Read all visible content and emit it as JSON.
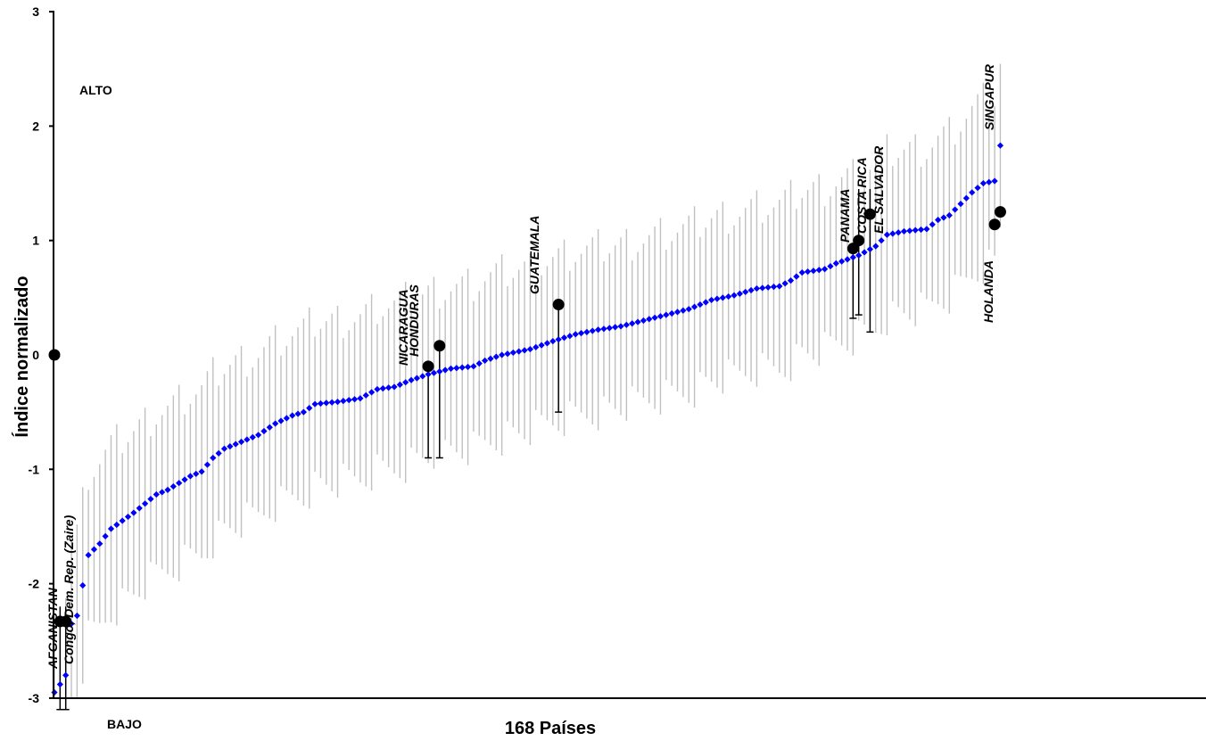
{
  "chart_data": {
    "type": "scatter",
    "n_countries": 168,
    "xlabel": "168 Países",
    "ylabel": "Índice normalizado",
    "ylim": [
      -3,
      3
    ],
    "yticks": [
      "-3",
      "-2",
      "-1",
      "0",
      "1",
      "2",
      "3"
    ],
    "region_labels": {
      "high": "ALTO",
      "low": "BAJO"
    },
    "series_color": "#0000ff",
    "interval_color": "#c0c0c0",
    "highlight_color": "#000000",
    "series": {
      "anchors": [
        [
          0,
          -2.95
        ],
        [
          1,
          -2.88
        ],
        [
          2,
          -2.8
        ],
        [
          3,
          -2.35
        ],
        [
          4,
          -2.28
        ],
        [
          6,
          -1.75
        ],
        [
          8,
          -1.65
        ],
        [
          10,
          -1.52
        ],
        [
          12,
          -1.45
        ],
        [
          14,
          -1.38
        ],
        [
          16,
          -1.3
        ],
        [
          18,
          -1.22
        ],
        [
          20,
          -1.18
        ],
        [
          22,
          -1.12
        ],
        [
          24,
          -1.06
        ],
        [
          26,
          -1.02
        ],
        [
          28,
          -0.9
        ],
        [
          30,
          -0.82
        ],
        [
          33,
          -0.76
        ],
        [
          36,
          -0.7
        ],
        [
          39,
          -0.6
        ],
        [
          42,
          -0.53
        ],
        [
          44,
          -0.5
        ],
        [
          46,
          -0.43
        ],
        [
          50,
          -0.41
        ],
        [
          54,
          -0.38
        ],
        [
          57,
          -0.3
        ],
        [
          60,
          -0.28
        ],
        [
          63,
          -0.22
        ],
        [
          66,
          -0.17
        ],
        [
          70,
          -0.12
        ],
        [
          74,
          -0.1
        ],
        [
          76,
          -0.05
        ],
        [
          79,
          0.0
        ],
        [
          84,
          0.05
        ],
        [
          88,
          0.12
        ],
        [
          92,
          0.18
        ],
        [
          96,
          0.22
        ],
        [
          100,
          0.25
        ],
        [
          104,
          0.3
        ],
        [
          108,
          0.35
        ],
        [
          112,
          0.4
        ],
        [
          116,
          0.48
        ],
        [
          120,
          0.52
        ],
        [
          124,
          0.58
        ],
        [
          128,
          0.6
        ],
        [
          130,
          0.65
        ],
        [
          132,
          0.72
        ],
        [
          136,
          0.75
        ],
        [
          138,
          0.8
        ],
        [
          142,
          0.87
        ],
        [
          145,
          0.95
        ],
        [
          147,
          1.05
        ],
        [
          150,
          1.08
        ],
        [
          154,
          1.1
        ],
        [
          156,
          1.18
        ],
        [
          158,
          1.22
        ],
        [
          160,
          1.32
        ],
        [
          162,
          1.42
        ],
        [
          164,
          1.5
        ],
        [
          166,
          1.52
        ],
        [
          167,
          1.83
        ]
      ]
    },
    "highlighted": [
      {
        "name": "AFGANISTAN",
        "x": 1,
        "y": -2.33,
        "lo": -3.1,
        "hi": -2.2
      },
      {
        "name": "Congo, Dem. Rep. (Zaire)",
        "x": 2,
        "y": -2.33,
        "lo": -3.1,
        "hi": -2.2
      },
      {
        "name": "NICARAGUA",
        "x": 66,
        "y": -0.1,
        "lo": -0.9,
        "hi": -0.1
      },
      {
        "name": "HONDURAS",
        "x": 68,
        "y": 0.08,
        "lo": -0.9,
        "hi": 0.08
      },
      {
        "name": "GUATEMALA",
        "x": 89,
        "y": 0.44,
        "lo": -0.5,
        "hi": 0.44
      },
      {
        "name": "PANAMA",
        "x": 141,
        "y": 0.93,
        "lo": 0.32,
        "hi": 0.93
      },
      {
        "name": "COSTA RICA",
        "x": 142,
        "y": 1.0,
        "lo": 0.35,
        "hi": 1.45
      },
      {
        "name": "EL SALVADOR",
        "x": 144,
        "y": 1.23,
        "lo": 0.2,
        "hi": 1.45
      },
      {
        "name": "HOLANDA",
        "x": 166,
        "y": 1.14
      },
      {
        "name": "SINGAPUR",
        "x": 167,
        "y": 1.25
      },
      {
        "name": "",
        "x": 0,
        "y": 0.0
      }
    ]
  }
}
